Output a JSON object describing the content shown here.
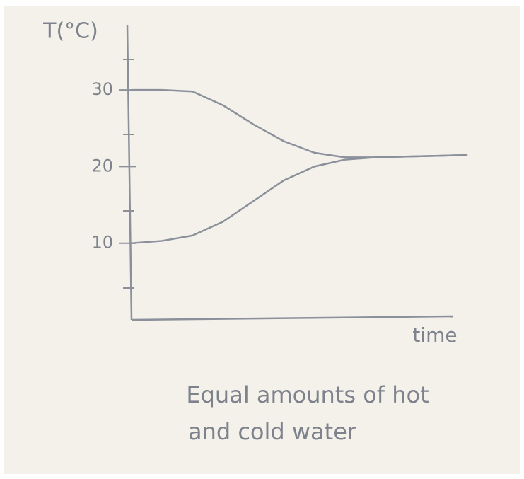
{
  "chart_data": {
    "type": "line",
    "y_label": "T(°C)",
    "x_label": "time",
    "caption": [
      "Equal amounts of hot",
      "and cold water"
    ],
    "categories": [
      null,
      null,
      null,
      null,
      null,
      null,
      null,
      null,
      null,
      null,
      null,
      null
    ],
    "series": [
      {
        "color": "#8b909b",
        "values": [
          30,
          30,
          29.8,
          28,
          25.5,
          23.3,
          21.8,
          21.2,
          21.2,
          21.3,
          21.4,
          21.5
        ]
      },
      {
        "color": "#8b909b",
        "values": [
          10,
          10.3,
          11,
          12.8,
          15.5,
          18.2,
          20,
          20.9,
          21.2,
          21.3,
          21.4,
          21.5
        ]
      }
    ],
    "ylim": [
      0,
      38.5
    ],
    "yticks": [
      10,
      20,
      30
    ]
  }
}
